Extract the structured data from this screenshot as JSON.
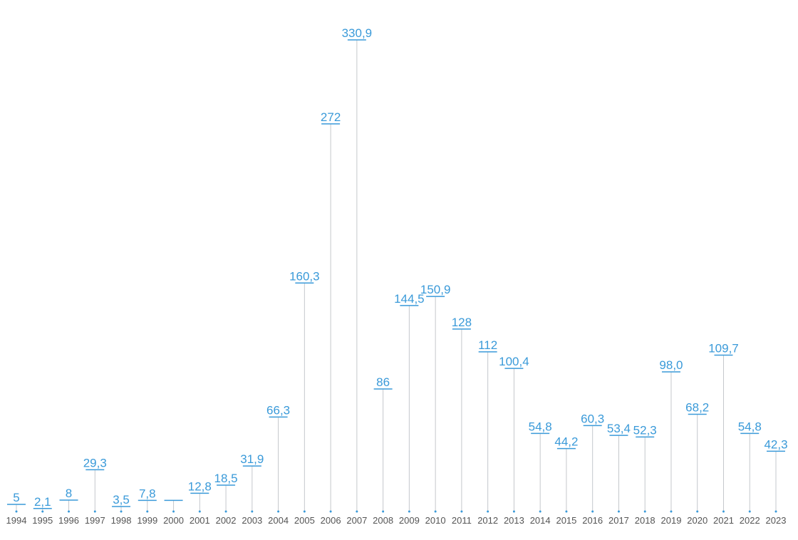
{
  "chart_data": {
    "type": "lollipop",
    "categories": [
      "1994",
      "1995",
      "1996",
      "1997",
      "1998",
      "1999",
      "2000",
      "2001",
      "2002",
      "2003",
      "2004",
      "2005",
      "2006",
      "2007",
      "2008",
      "2009",
      "2010",
      "2011",
      "2012",
      "2013",
      "2014",
      "2015",
      "2016",
      "2017",
      "2018",
      "2019",
      "2020",
      "2021",
      "2022",
      "2023"
    ],
    "values": [
      5,
      2.1,
      8,
      29.3,
      3.5,
      7.8,
      7.8,
      12.8,
      18.5,
      31.9,
      66.3,
      160.3,
      272,
      330.9,
      86,
      144.5,
      150.9,
      128,
      112,
      100.4,
      54.8,
      44.2,
      60.3,
      53.4,
      52.3,
      98.0,
      68.2,
      109.7,
      54.8,
      42.3
    ],
    "value_labels": [
      "5",
      "2,1",
      "8",
      "29,3",
      "3,5",
      "7,8",
      null,
      "12,8",
      "18,5",
      "31,9",
      "66,3",
      "160,3",
      "272",
      "330,9",
      "86",
      "144,5",
      "150,9",
      "128",
      "112",
      "100,4",
      "54,8",
      "44,2",
      "60,3",
      "53,4",
      "52,3",
      "98,0",
      "68,2",
      "109,7",
      "54,8",
      "42,3"
    ],
    "color": "#3a9ad9"
  }
}
